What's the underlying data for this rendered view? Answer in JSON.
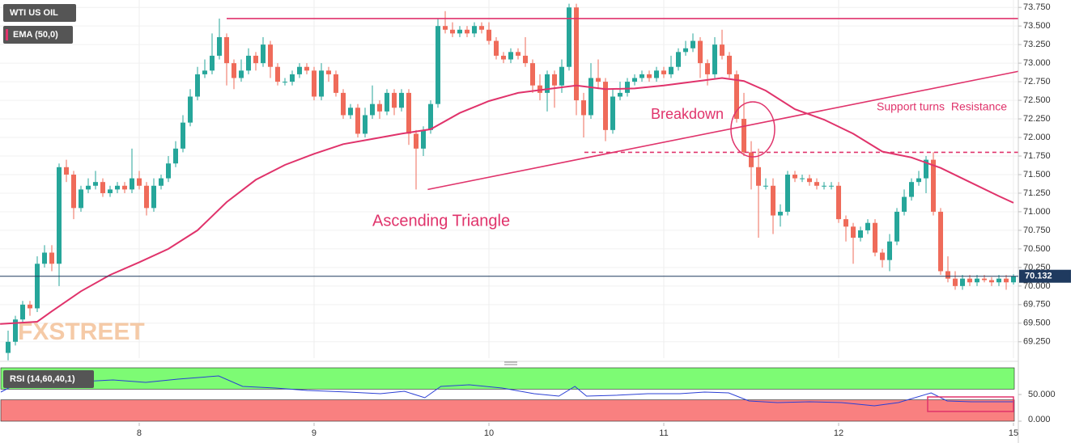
{
  "chart_data": {
    "type": "candlestick",
    "title": "WTI US OIL",
    "watermark": "FXSTREET",
    "colors": {
      "up": "#26a69a",
      "down": "#ef6b5a",
      "last": "#1f3a5f",
      "lines": "#e0336b"
    },
    "x": [
      0,
      1,
      2,
      3,
      4,
      5,
      6,
      7,
      8,
      9,
      10,
      11,
      12,
      13,
      14,
      15,
      16,
      17,
      18,
      19,
      20,
      21,
      22,
      23,
      24,
      25,
      26,
      27,
      28,
      29,
      30,
      31,
      32,
      33,
      34,
      35,
      36,
      37,
      38,
      39,
      40,
      41,
      42,
      43,
      44,
      45,
      46,
      47,
      48,
      49,
      50,
      51,
      52,
      53,
      54,
      55,
      56,
      57,
      58,
      59,
      60,
      61,
      62,
      63,
      64,
      65,
      66,
      67,
      68,
      69,
      70,
      71,
      72,
      73,
      74,
      75,
      76,
      77,
      78,
      79,
      80,
      81,
      82,
      83,
      84,
      85,
      86,
      87,
      88,
      89,
      90,
      91,
      92,
      93,
      94,
      95,
      96,
      97,
      98,
      99,
      100,
      101,
      102,
      103,
      104,
      105,
      106,
      107,
      108,
      109,
      110,
      111,
      112,
      113,
      114,
      115,
      116,
      117,
      118,
      119,
      120,
      121,
      122,
      123,
      124,
      125,
      126,
      127,
      128,
      129,
      130,
      131,
      132,
      133,
      134,
      135,
      136,
      137,
      138
    ],
    "ohlc": [
      [
        69.1,
        69.4,
        69.0,
        69.25
      ],
      [
        69.25,
        69.6,
        69.2,
        69.55
      ],
      [
        69.55,
        69.8,
        69.5,
        69.75
      ],
      [
        69.75,
        69.8,
        69.6,
        69.7
      ],
      [
        69.7,
        70.4,
        69.65,
        70.3
      ],
      [
        70.3,
        70.55,
        70.25,
        70.45
      ],
      [
        70.45,
        70.55,
        70.2,
        70.3
      ],
      [
        70.3,
        71.65,
        70.0,
        71.6
      ],
      [
        71.6,
        71.7,
        71.4,
        71.5
      ],
      [
        71.5,
        71.55,
        70.9,
        71.05
      ],
      [
        71.05,
        71.35,
        71.0,
        71.3
      ],
      [
        71.3,
        71.45,
        71.25,
        71.35
      ],
      [
        71.35,
        71.55,
        71.3,
        71.4
      ],
      [
        71.4,
        71.45,
        71.2,
        71.25
      ],
      [
        71.25,
        71.35,
        71.2,
        71.3
      ],
      [
        71.3,
        71.4,
        71.25,
        71.35
      ],
      [
        71.35,
        71.4,
        71.25,
        71.3
      ],
      [
        71.3,
        71.85,
        71.25,
        71.45
      ],
      [
        71.45,
        71.55,
        71.3,
        71.35
      ],
      [
        71.35,
        71.4,
        70.95,
        71.05
      ],
      [
        71.05,
        71.45,
        71.0,
        71.35
      ],
      [
        71.35,
        71.5,
        71.3,
        71.45
      ],
      [
        71.45,
        71.75,
        71.4,
        71.65
      ],
      [
        71.65,
        71.95,
        71.6,
        71.85
      ],
      [
        71.85,
        72.3,
        71.8,
        72.2
      ],
      [
        72.2,
        72.65,
        72.15,
        72.55
      ],
      [
        72.55,
        72.95,
        72.5,
        72.85
      ],
      [
        72.85,
        73.05,
        72.8,
        72.9
      ],
      [
        72.9,
        73.4,
        72.85,
        73.1
      ],
      [
        73.1,
        73.6,
        73.05,
        73.35
      ],
      [
        73.35,
        73.4,
        72.7,
        73.0
      ],
      [
        73.0,
        73.05,
        72.65,
        72.8
      ],
      [
        72.8,
        73.05,
        72.75,
        72.9
      ],
      [
        72.9,
        73.2,
        72.85,
        73.1
      ],
      [
        73.1,
        73.15,
        72.9,
        73.0
      ],
      [
        73.0,
        73.35,
        72.95,
        73.25
      ],
      [
        73.25,
        73.3,
        72.8,
        72.95
      ],
      [
        72.95,
        73.0,
        72.7,
        72.75
      ],
      [
        72.75,
        72.8,
        72.7,
        72.75
      ],
      [
        72.75,
        72.9,
        72.7,
        72.85
      ],
      [
        72.85,
        73.0,
        72.8,
        72.95
      ],
      [
        72.95,
        73.0,
        72.85,
        72.9
      ],
      [
        72.9,
        72.95,
        72.5,
        72.55
      ],
      [
        72.55,
        73.0,
        72.5,
        72.9
      ],
      [
        72.9,
        72.95,
        72.75,
        72.85
      ],
      [
        72.85,
        72.9,
        72.55,
        72.6
      ],
      [
        72.6,
        72.65,
        72.25,
        72.3
      ],
      [
        72.3,
        72.45,
        72.25,
        72.4
      ],
      [
        72.4,
        72.45,
        72.0,
        72.05
      ],
      [
        72.05,
        72.4,
        72.0,
        72.3
      ],
      [
        72.3,
        72.7,
        72.25,
        72.45
      ],
      [
        72.45,
        72.5,
        72.25,
        72.35
      ],
      [
        72.35,
        72.65,
        72.3,
        72.6
      ],
      [
        72.6,
        72.65,
        72.3,
        72.4
      ],
      [
        72.4,
        72.65,
        72.35,
        72.6
      ],
      [
        72.6,
        72.65,
        71.9,
        72.05
      ],
      [
        72.05,
        72.1,
        71.3,
        71.85
      ],
      [
        71.85,
        72.15,
        71.75,
        72.1
      ],
      [
        72.1,
        72.5,
        72.05,
        72.45
      ],
      [
        72.45,
        73.6,
        72.4,
        73.5
      ],
      [
        73.5,
        73.7,
        73.4,
        73.45
      ],
      [
        73.45,
        73.55,
        73.35,
        73.4
      ],
      [
        73.4,
        73.5,
        73.35,
        73.45
      ],
      [
        73.45,
        73.5,
        73.35,
        73.4
      ],
      [
        73.4,
        73.55,
        73.35,
        73.5
      ],
      [
        73.5,
        73.55,
        73.4,
        73.45
      ],
      [
        73.45,
        73.55,
        73.25,
        73.3
      ],
      [
        73.3,
        73.35,
        73.05,
        73.1
      ],
      [
        73.1,
        73.15,
        73.0,
        73.05
      ],
      [
        73.05,
        73.2,
        73.0,
        73.15
      ],
      [
        73.15,
        73.2,
        73.05,
        73.1
      ],
      [
        73.1,
        73.35,
        72.95,
        73.0
      ],
      [
        73.0,
        73.05,
        72.6,
        72.7
      ],
      [
        72.7,
        72.85,
        72.5,
        72.6
      ],
      [
        72.6,
        72.9,
        72.35,
        72.85
      ],
      [
        72.85,
        72.9,
        72.4,
        72.7
      ],
      [
        72.7,
        73.05,
        72.6,
        72.95
      ],
      [
        72.95,
        73.8,
        72.9,
        73.75
      ],
      [
        73.75,
        73.8,
        72.3,
        72.5
      ],
      [
        72.5,
        72.6,
        72.0,
        72.3
      ],
      [
        72.3,
        73.0,
        72.25,
        72.8
      ],
      [
        72.8,
        73.05,
        72.65,
        72.75
      ],
      [
        72.75,
        72.8,
        71.95,
        72.1
      ],
      [
        72.1,
        72.65,
        72.05,
        72.55
      ],
      [
        72.55,
        72.75,
        72.5,
        72.6
      ],
      [
        72.6,
        72.8,
        72.55,
        72.75
      ],
      [
        72.75,
        72.85,
        72.7,
        72.8
      ],
      [
        72.8,
        72.9,
        72.75,
        72.85
      ],
      [
        72.85,
        72.9,
        72.75,
        72.8
      ],
      [
        72.8,
        72.95,
        72.75,
        72.9
      ],
      [
        72.9,
        72.95,
        72.8,
        72.85
      ],
      [
        72.85,
        73.1,
        72.8,
        72.95
      ],
      [
        72.95,
        73.2,
        72.9,
        73.15
      ],
      [
        73.15,
        73.3,
        73.1,
        73.2
      ],
      [
        73.2,
        73.4,
        73.15,
        73.3
      ],
      [
        73.3,
        73.35,
        72.8,
        73.0
      ],
      [
        73.0,
        73.05,
        72.7,
        72.85
      ],
      [
        72.85,
        73.35,
        72.8,
        73.25
      ],
      [
        73.25,
        73.45,
        73.05,
        73.1
      ],
      [
        73.1,
        73.15,
        72.8,
        72.85
      ],
      [
        72.85,
        72.9,
        72.2,
        72.25
      ],
      [
        72.25,
        72.6,
        71.75,
        71.8
      ],
      [
        71.8,
        71.95,
        71.3,
        71.6
      ],
      [
        71.6,
        71.85,
        70.65,
        71.35
      ],
      [
        71.35,
        71.45,
        71.3,
        71.35
      ],
      [
        71.35,
        71.45,
        70.7,
        70.95
      ],
      [
        70.95,
        71.1,
        70.8,
        71.0
      ],
      [
        71.0,
        71.55,
        70.95,
        71.5
      ],
      [
        71.5,
        71.55,
        71.4,
        71.45
      ],
      [
        71.45,
        71.5,
        71.4,
        71.45
      ],
      [
        71.45,
        71.5,
        71.35,
        71.4
      ],
      [
        71.4,
        71.45,
        71.3,
        71.35
      ],
      [
        71.35,
        71.4,
        71.3,
        71.35
      ],
      [
        71.35,
        71.4,
        71.3,
        71.35
      ],
      [
        71.35,
        71.4,
        70.85,
        70.9
      ],
      [
        70.9,
        70.95,
        70.6,
        70.8
      ],
      [
        70.8,
        70.85,
        70.3,
        70.65
      ],
      [
        70.65,
        70.8,
        70.6,
        70.75
      ],
      [
        70.75,
        70.9,
        70.7,
        70.85
      ],
      [
        70.85,
        70.9,
        70.4,
        70.45
      ],
      [
        70.45,
        70.5,
        70.25,
        70.35
      ],
      [
        70.35,
        70.7,
        70.2,
        70.6
      ],
      [
        70.6,
        71.05,
        70.55,
        71.0
      ],
      [
        71.0,
        71.3,
        70.95,
        71.2
      ],
      [
        71.2,
        71.45,
        71.15,
        71.4
      ],
      [
        71.4,
        71.55,
        71.35,
        71.45
      ],
      [
        71.45,
        71.75,
        71.25,
        71.7
      ],
      [
        71.7,
        71.8,
        70.95,
        71.0
      ],
      [
        71.0,
        71.05,
        70.15,
        70.2
      ],
      [
        70.2,
        70.4,
        70.05,
        70.1
      ],
      [
        70.1,
        70.2,
        69.95,
        70.0
      ],
      [
        70.0,
        70.15,
        69.95,
        70.1
      ],
      [
        70.1,
        70.15,
        70.0,
        70.05
      ],
      [
        70.05,
        70.15,
        70.0,
        70.1
      ],
      [
        70.1,
        70.15,
        70.05,
        70.08
      ],
      [
        70.08,
        70.12,
        70.0,
        70.05
      ],
      [
        70.05,
        70.15,
        70.0,
        70.1
      ],
      [
        70.1,
        70.15,
        69.95,
        70.05
      ],
      [
        70.05,
        70.16,
        70.02,
        70.132
      ]
    ],
    "xlim": [
      -1.111,
      138.667
    ],
    "xticks": [
      {
        "value": 18,
        "label": "8"
      },
      {
        "value": 42,
        "label": "9"
      },
      {
        "value": 66,
        "label": "10"
      },
      {
        "value": 90,
        "label": "11"
      },
      {
        "value": 114,
        "label": "12"
      },
      {
        "value": 138,
        "label": "15"
      }
    ],
    "ylim": [
      69.03,
      73.85
    ],
    "yticks": [
      {
        "value": 69.25,
        "label": "69.250"
      },
      {
        "value": 69.5,
        "label": "69.500"
      },
      {
        "value": 69.75,
        "label": "69.750"
      },
      {
        "value": 70,
        "label": "70.000"
      },
      {
        "value": 70.25,
        "label": "70.250"
      },
      {
        "value": 70.5,
        "label": "70.500"
      },
      {
        "value": 70.75,
        "label": "70.750"
      },
      {
        "value": 71,
        "label": "71.000"
      },
      {
        "value": 71.25,
        "label": "71.250"
      },
      {
        "value": 71.5,
        "label": "71.500"
      },
      {
        "value": 71.75,
        "label": "71.750"
      },
      {
        "value": 72,
        "label": "72.000"
      },
      {
        "value": 72.25,
        "label": "72.250"
      },
      {
        "value": 72.5,
        "label": "72.500"
      },
      {
        "value": 72.75,
        "label": "72.750"
      },
      {
        "value": 73,
        "label": "73.000"
      },
      {
        "value": 73.25,
        "label": "73.250"
      },
      {
        "value": 73.5,
        "label": "73.500"
      },
      {
        "value": 73.75,
        "label": "73.750"
      }
    ],
    "grid": true,
    "ema": {
      "name": "EMA (50,0)",
      "color": "#e0336b",
      "x": [
        -1.1,
        4,
        6,
        10,
        14,
        18,
        22,
        26,
        30,
        34,
        38,
        42,
        46,
        50,
        54,
        58,
        62,
        66,
        70,
        74,
        78,
        82,
        86,
        90,
        94,
        98,
        101,
        104,
        108,
        112,
        116,
        120,
        124,
        128,
        132,
        136,
        138
      ],
      "values": [
        69.49,
        69.52,
        69.66,
        69.93,
        70.15,
        70.32,
        70.5,
        70.75,
        71.13,
        71.43,
        71.63,
        71.78,
        71.91,
        71.98,
        72.05,
        72.11,
        72.33,
        72.49,
        72.6,
        72.65,
        72.7,
        72.65,
        72.66,
        72.7,
        72.75,
        72.8,
        72.76,
        72.63,
        72.38,
        72.24,
        72.05,
        71.81,
        71.73,
        71.59,
        71.4,
        71.21,
        71.12
      ]
    },
    "lines": [
      {
        "style": "solid",
        "x": [
          30,
          138.667
        ],
        "values": [
          73.6,
          73.6
        ]
      },
      {
        "style": "solid",
        "x": [
          57.6,
          138.667
        ],
        "values": [
          71.3,
          72.89
        ]
      },
      {
        "style": "dashed",
        "x": [
          79.1,
          138.667
        ],
        "values": [
          71.8,
          71.8
        ]
      }
    ],
    "annotations": [
      "Ascending Triangle",
      "Breakdown",
      "Support turns  Resistance"
    ],
    "rsi": {
      "name": "RSI (14,60,40,1)",
      "color": "#2a3fd4",
      "x": [
        -1,
        2.2,
        5.6,
        10,
        14.4,
        18.9,
        23.3,
        28.9,
        32.2,
        36.7,
        41.1,
        46.7,
        51.1,
        54.4,
        57.2,
        59.4,
        63.3,
        67.8,
        72.2,
        75.6,
        77.8,
        79.4,
        83.3,
        87.8,
        92.2,
        95.6,
        98.9,
        101.7,
        105.6,
        110,
        114.4,
        118.9,
        122.2,
        126.7,
        128.9,
        132.2,
        138
      ],
      "values": [
        54.5,
        77.3,
        75.8,
        74.2,
        77.3,
        72.7,
        78.8,
        84.8,
        65.2,
        62.1,
        57.6,
        54.5,
        51.5,
        56.1,
        43.9,
        65.2,
        68.2,
        62.1,
        51.5,
        47.0,
        65.2,
        47.0,
        48.5,
        51.5,
        51.5,
        54.5,
        53.0,
        37.9,
        34.8,
        36.4,
        34.8,
        28.8,
        34.8,
        53.0,
        37.9,
        36.4,
        36.4
      ],
      "ylim": [
        0,
        100
      ],
      "yticks": [
        {
          "value": 0,
          "label": "0.000"
        },
        {
          "value": 50,
          "label": "50.000"
        }
      ],
      "bands": [
        {
          "from": 60,
          "to": 100,
          "color": "#7dfb74"
        },
        {
          "from": 0,
          "to": 40,
          "color": "#f98080"
        }
      ]
    }
  }
}
